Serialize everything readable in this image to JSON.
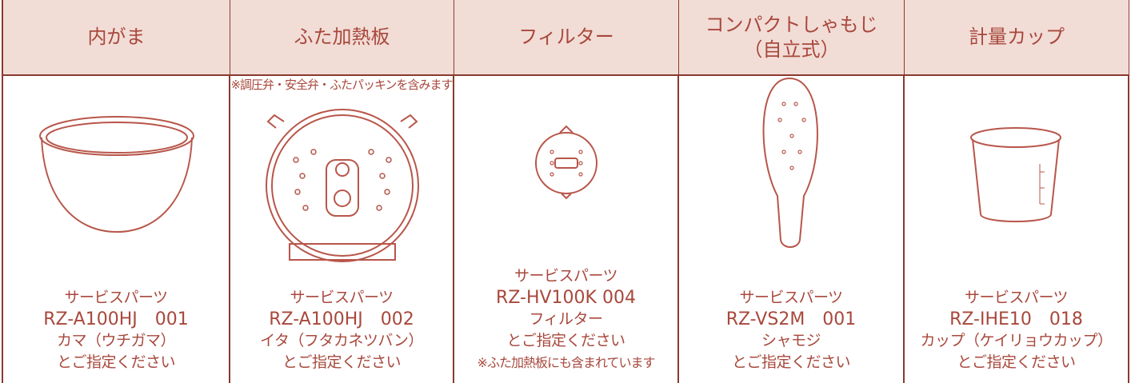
{
  "table": {
    "headers": [
      [
        "内がま"
      ],
      [
        "ふた加熱板"
      ],
      [
        "フィルター"
      ],
      [
        "コンパクトしゃもじ",
        "（自立式）"
      ],
      [
        "計量カップ"
      ]
    ],
    "cells": [
      {
        "lines": [
          "サービスパーツ",
          "RZ-A100HJ　001",
          "カマ（ウチガマ）",
          "とご指定ください"
        ]
      },
      {
        "note": "※調圧弁・安全弁・ふたパッキンを含みます",
        "lines": [
          "サービスパーツ",
          "RZ-A100HJ　002",
          "イタ（フタカネツバン）",
          "とご指定ください"
        ]
      },
      {
        "lines": [
          "サービスパーツ",
          "RZ-HV100K 004",
          "フィルター",
          "とご指定ください",
          "※ふた加熱板にも含まれています"
        ]
      },
      {
        "lines": [
          "サービスパーツ",
          "RZ-VS2M　001",
          "シャモジ",
          "とご指定ください"
        ]
      },
      {
        "lines": [
          "サービスパーツ",
          "RZ-IHE10　018",
          "カップ（ケイリョウカップ）",
          "とご指定ください"
        ]
      }
    ]
  }
}
